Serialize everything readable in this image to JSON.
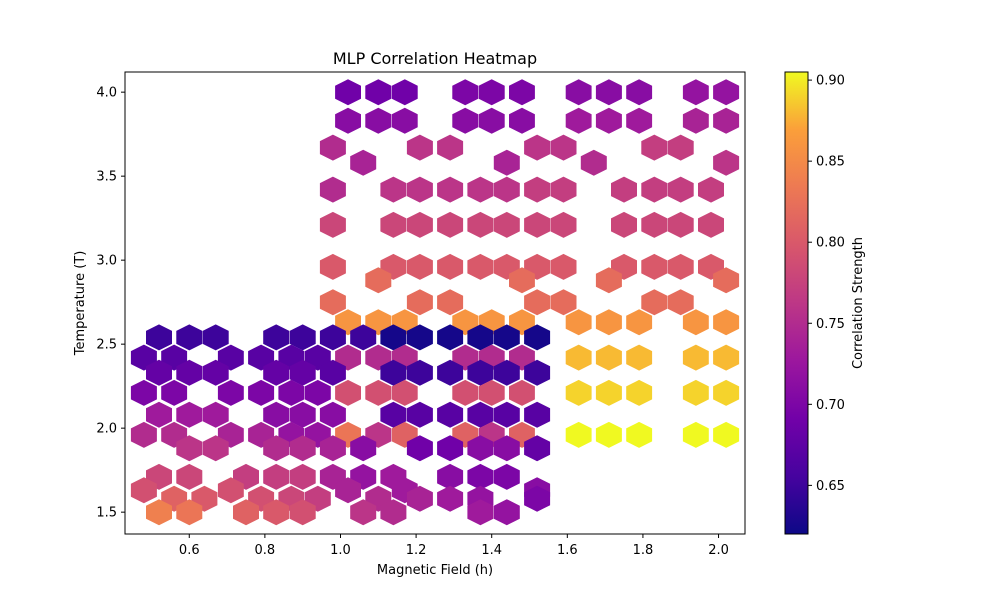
{
  "chart_data": {
    "type": "heatmap",
    "subtype": "hexbin",
    "title": "MLP Correlation Heatmap",
    "xlabel": "Magnetic Field (h)",
    "ylabel": "Temperature (T)",
    "colorbar_label": "Correlation Strength",
    "colormap": "plasma",
    "xlim": [
      0.43,
      2.07
    ],
    "ylim": [
      1.37,
      4.12
    ],
    "clim": [
      0.62,
      0.905
    ],
    "xticks": [
      0.6,
      0.8,
      1.0,
      1.2,
      1.4,
      1.6,
      1.8,
      2.0
    ],
    "xtick_labels": [
      "0.6",
      "0.8",
      "1.0",
      "1.2",
      "1.4",
      "1.6",
      "1.8",
      "2.0"
    ],
    "yticks": [
      1.5,
      2.0,
      2.5,
      3.0,
      3.5,
      4.0
    ],
    "ytick_labels": [
      "1.5",
      "2.0",
      "2.5",
      "3.0",
      "3.5",
      "4.0"
    ],
    "cticks": [
      0.65,
      0.7,
      0.75,
      0.8,
      0.85,
      0.9
    ],
    "ctick_labels": [
      "0.65",
      "0.70",
      "0.75",
      "0.80",
      "0.85",
      "0.90"
    ],
    "grid": false,
    "rows": [
      {
        "y": 4.0,
        "cells": [
          [
            1.02,
            0.69
          ],
          [
            1.1,
            0.69
          ],
          [
            1.17,
            0.69
          ],
          [
            1.33,
            0.7
          ],
          [
            1.4,
            0.7
          ],
          [
            1.48,
            0.7
          ],
          [
            1.63,
            0.71
          ],
          [
            1.71,
            0.71
          ],
          [
            1.79,
            0.71
          ],
          [
            1.94,
            0.72
          ],
          [
            2.02,
            0.72
          ]
        ]
      },
      {
        "y": 3.83,
        "cells": [
          [
            1.02,
            0.71
          ],
          [
            1.1,
            0.71
          ],
          [
            1.17,
            0.71
          ],
          [
            1.33,
            0.71
          ],
          [
            1.4,
            0.71
          ],
          [
            1.48,
            0.71
          ],
          [
            1.63,
            0.73
          ],
          [
            1.71,
            0.73
          ],
          [
            1.79,
            0.73
          ],
          [
            1.94,
            0.74
          ],
          [
            2.02,
            0.74
          ]
        ]
      },
      {
        "y": 3.67,
        "cells": [
          [
            0.98,
            0.75
          ],
          [
            1.21,
            0.76
          ],
          [
            1.29,
            0.76
          ],
          [
            1.52,
            0.76
          ],
          [
            1.59,
            0.76
          ],
          [
            1.83,
            0.77
          ],
          [
            1.9,
            0.77
          ]
        ]
      },
      {
        "y": 3.58,
        "cells": [
          [
            1.06,
            0.74
          ],
          [
            1.44,
            0.74
          ],
          [
            1.67,
            0.75
          ],
          [
            2.02,
            0.76
          ]
        ]
      },
      {
        "y": 3.42,
        "cells": [
          [
            0.98,
            0.75
          ],
          [
            1.14,
            0.76
          ],
          [
            1.21,
            0.76
          ],
          [
            1.29,
            0.76
          ],
          [
            1.37,
            0.76
          ],
          [
            1.44,
            0.76
          ],
          [
            1.52,
            0.77
          ],
          [
            1.59,
            0.77
          ],
          [
            1.75,
            0.77
          ],
          [
            1.83,
            0.77
          ],
          [
            1.9,
            0.77
          ],
          [
            1.98,
            0.77
          ]
        ]
      },
      {
        "y": 3.21,
        "cells": [
          [
            0.98,
            0.78
          ],
          [
            1.14,
            0.78
          ],
          [
            1.21,
            0.78
          ],
          [
            1.29,
            0.78
          ],
          [
            1.37,
            0.78
          ],
          [
            1.44,
            0.78
          ],
          [
            1.52,
            0.78
          ],
          [
            1.59,
            0.78
          ],
          [
            1.75,
            0.78
          ],
          [
            1.83,
            0.78
          ],
          [
            1.9,
            0.78
          ],
          [
            1.98,
            0.78
          ]
        ]
      },
      {
        "y": 2.96,
        "cells": [
          [
            0.98,
            0.8
          ],
          [
            1.14,
            0.8
          ],
          [
            1.21,
            0.8
          ],
          [
            1.29,
            0.8
          ],
          [
            1.37,
            0.8
          ],
          [
            1.44,
            0.8
          ],
          [
            1.52,
            0.8
          ],
          [
            1.59,
            0.8
          ],
          [
            1.75,
            0.8
          ],
          [
            1.83,
            0.8
          ],
          [
            1.9,
            0.8
          ],
          [
            1.98,
            0.8
          ]
        ]
      },
      {
        "y": 2.88,
        "cells": [
          [
            1.1,
            0.82
          ],
          [
            1.48,
            0.82
          ],
          [
            1.71,
            0.82
          ],
          [
            2.02,
            0.82
          ]
        ]
      },
      {
        "y": 2.75,
        "cells": [
          [
            0.98,
            0.82
          ],
          [
            1.21,
            0.82
          ],
          [
            1.29,
            0.82
          ],
          [
            1.52,
            0.82
          ],
          [
            1.59,
            0.82
          ],
          [
            1.83,
            0.82
          ],
          [
            1.9,
            0.82
          ]
        ]
      },
      {
        "y": 2.63,
        "cells": [
          [
            1.02,
            0.86
          ],
          [
            1.1,
            0.86
          ],
          [
            1.17,
            0.86
          ],
          [
            1.33,
            0.86
          ],
          [
            1.4,
            0.86
          ],
          [
            1.48,
            0.86
          ],
          [
            1.63,
            0.86
          ],
          [
            1.71,
            0.86
          ],
          [
            1.79,
            0.86
          ],
          [
            1.94,
            0.86
          ],
          [
            2.02,
            0.86
          ]
        ]
      },
      {
        "y": 2.54,
        "cells": [
          [
            0.52,
            0.65
          ],
          [
            0.6,
            0.65
          ],
          [
            0.67,
            0.65
          ],
          [
            0.83,
            0.65
          ],
          [
            0.9,
            0.65
          ],
          [
            0.98,
            0.65
          ],
          [
            1.06,
            0.65
          ],
          [
            1.14,
            0.625
          ],
          [
            1.21,
            0.625
          ],
          [
            1.29,
            0.625
          ],
          [
            1.37,
            0.625
          ],
          [
            1.44,
            0.625
          ],
          [
            1.52,
            0.625
          ]
        ]
      },
      {
        "y": 2.42,
        "cells": [
          [
            0.48,
            0.67
          ],
          [
            0.56,
            0.67
          ],
          [
            0.71,
            0.67
          ],
          [
            0.79,
            0.67
          ],
          [
            0.87,
            0.67
          ],
          [
            0.94,
            0.67
          ],
          [
            1.02,
            0.75
          ],
          [
            1.1,
            0.75
          ],
          [
            1.17,
            0.75
          ],
          [
            1.33,
            0.75
          ],
          [
            1.4,
            0.75
          ],
          [
            1.48,
            0.75
          ],
          [
            1.63,
            0.88
          ],
          [
            1.71,
            0.88
          ],
          [
            1.79,
            0.88
          ],
          [
            1.94,
            0.88
          ],
          [
            2.02,
            0.88
          ]
        ]
      },
      {
        "y": 2.33,
        "cells": [
          [
            0.52,
            0.68
          ],
          [
            0.6,
            0.68
          ],
          [
            0.67,
            0.68
          ],
          [
            0.83,
            0.68
          ],
          [
            0.9,
            0.68
          ],
          [
            0.98,
            0.67
          ],
          [
            1.14,
            0.65
          ],
          [
            1.21,
            0.65
          ],
          [
            1.29,
            0.65
          ],
          [
            1.37,
            0.65
          ],
          [
            1.44,
            0.65
          ],
          [
            1.52,
            0.65
          ]
        ]
      },
      {
        "y": 2.21,
        "cells": [
          [
            0.48,
            0.7
          ],
          [
            0.56,
            0.7
          ],
          [
            0.71,
            0.7
          ],
          [
            0.79,
            0.7
          ],
          [
            0.87,
            0.7
          ],
          [
            0.94,
            0.7
          ],
          [
            1.02,
            0.79
          ],
          [
            1.1,
            0.79
          ],
          [
            1.17,
            0.79
          ],
          [
            1.33,
            0.79
          ],
          [
            1.4,
            0.79
          ],
          [
            1.48,
            0.79
          ],
          [
            1.63,
            0.89
          ],
          [
            1.71,
            0.89
          ],
          [
            1.79,
            0.89
          ],
          [
            1.94,
            0.89
          ],
          [
            2.02,
            0.89
          ]
        ]
      },
      {
        "y": 2.08,
        "cells": [
          [
            0.52,
            0.73
          ],
          [
            0.6,
            0.73
          ],
          [
            0.67,
            0.73
          ],
          [
            0.83,
            0.71
          ],
          [
            0.9,
            0.71
          ],
          [
            0.98,
            0.71
          ],
          [
            1.14,
            0.67
          ],
          [
            1.21,
            0.67
          ],
          [
            1.29,
            0.67
          ],
          [
            1.37,
            0.67
          ],
          [
            1.44,
            0.67
          ],
          [
            1.52,
            0.67
          ]
        ]
      },
      {
        "y": 1.96,
        "cells": [
          [
            0.48,
            0.75
          ],
          [
            0.56,
            0.75
          ],
          [
            0.71,
            0.74
          ],
          [
            0.79,
            0.74
          ],
          [
            0.87,
            0.72
          ],
          [
            0.94,
            0.72
          ],
          [
            1.02,
            0.83
          ],
          [
            1.1,
            0.76
          ],
          [
            1.17,
            0.81
          ],
          [
            1.33,
            0.81
          ],
          [
            1.4,
            0.76
          ],
          [
            1.48,
            0.81
          ],
          [
            1.63,
            0.905
          ],
          [
            1.71,
            0.905
          ],
          [
            1.79,
            0.905
          ],
          [
            1.94,
            0.905
          ],
          [
            2.02,
            0.905
          ]
        ]
      },
      {
        "y": 1.88,
        "cells": [
          [
            0.6,
            0.76
          ],
          [
            0.67,
            0.76
          ],
          [
            0.83,
            0.75
          ],
          [
            0.9,
            0.75
          ],
          [
            0.98,
            0.74
          ],
          [
            1.06,
            0.71
          ],
          [
            1.21,
            0.69
          ],
          [
            1.29,
            0.69
          ],
          [
            1.37,
            0.71
          ],
          [
            1.44,
            0.71
          ],
          [
            1.52,
            0.68
          ]
        ]
      },
      {
        "y": 1.71,
        "cells": [
          [
            0.52,
            0.78
          ],
          [
            0.6,
            0.78
          ],
          [
            0.75,
            0.77
          ],
          [
            0.83,
            0.77
          ],
          [
            0.9,
            0.77
          ],
          [
            0.98,
            0.74
          ],
          [
            1.06,
            0.72
          ],
          [
            1.14,
            0.73
          ],
          [
            1.29,
            0.71
          ],
          [
            1.37,
            0.7
          ],
          [
            1.44,
            0.7
          ]
        ]
      },
      {
        "y": 1.63,
        "cells": [
          [
            0.48,
            0.79
          ],
          [
            0.71,
            0.79
          ],
          [
            1.02,
            0.74
          ],
          [
            1.17,
            0.73
          ],
          [
            1.52,
            0.71
          ]
        ]
      },
      {
        "y": 1.58,
        "cells": [
          [
            0.56,
            0.81
          ],
          [
            0.64,
            0.8
          ],
          [
            0.79,
            0.79
          ],
          [
            0.87,
            0.78
          ],
          [
            0.94,
            0.77
          ],
          [
            1.1,
            0.75
          ],
          [
            1.21,
            0.74
          ],
          [
            1.29,
            0.73
          ],
          [
            1.37,
            0.72
          ],
          [
            1.52,
            0.7
          ]
        ]
      },
      {
        "y": 1.5,
        "cells": [
          [
            0.52,
            0.84
          ],
          [
            0.6,
            0.83
          ],
          [
            0.75,
            0.81
          ],
          [
            0.83,
            0.8
          ],
          [
            0.9,
            0.79
          ],
          [
            1.06,
            0.76
          ],
          [
            1.14,
            0.75
          ],
          [
            1.37,
            0.73
          ],
          [
            1.44,
            0.72
          ]
        ]
      }
    ]
  }
}
